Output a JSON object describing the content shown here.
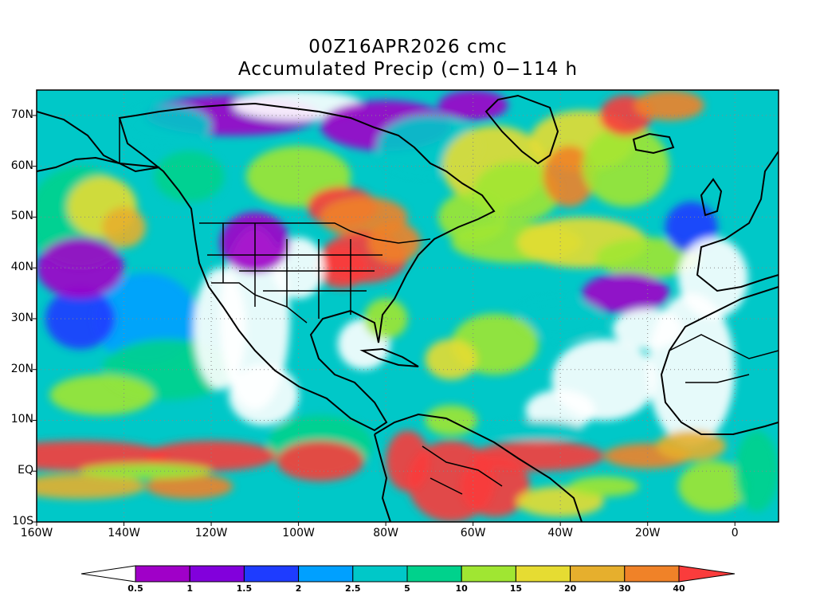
{
  "title": {
    "line1": "00Z16APR2026 cmc",
    "line2": "Accumulated Precip (cm) 0−114 h"
  },
  "axes": {
    "lat_labels": [
      "70N",
      "60N",
      "50N",
      "40N",
      "30N",
      "20N",
      "10N",
      "EQ",
      "10S"
    ],
    "lat_values": [
      70,
      60,
      50,
      40,
      30,
      20,
      10,
      0,
      -10
    ],
    "lon_labels": [
      "160W",
      "140W",
      "120W",
      "100W",
      "80W",
      "60W",
      "40W",
      "20W",
      "0"
    ],
    "lon_values": [
      -160,
      -140,
      -120,
      -100,
      -80,
      -60,
      -40,
      -20,
      0
    ],
    "lat_range": [
      -10,
      75
    ],
    "lon_range": [
      -160,
      10
    ]
  },
  "colorbar": {
    "labels": [
      "0.5",
      "1",
      "1.5",
      "2",
      "2.5",
      "5",
      "10",
      "15",
      "20",
      "30",
      "40"
    ],
    "colors": [
      "#a000c8",
      "#8200dc",
      "#1e3cff",
      "#00a0ff",
      "#00c8c8",
      "#00d28c",
      "#a0e632",
      "#e6dc32",
      "#e6af2d",
      "#f08228",
      "#fa3c3c"
    ],
    "under_color": "#ffffff",
    "over_color": "#fa3c3c"
  },
  "map_colors": {
    "magenta": "#a000c8",
    "violet": "#8200dc",
    "blue": "#1e3cff",
    "lightblue": "#00a0ff",
    "cyan": "#00c8c8",
    "green": "#00d28c",
    "lime": "#a0e632",
    "yellow": "#e6dc32",
    "orange": "#e6af2d",
    "darkorange": "#f08228",
    "red": "#fa3c3c"
  }
}
